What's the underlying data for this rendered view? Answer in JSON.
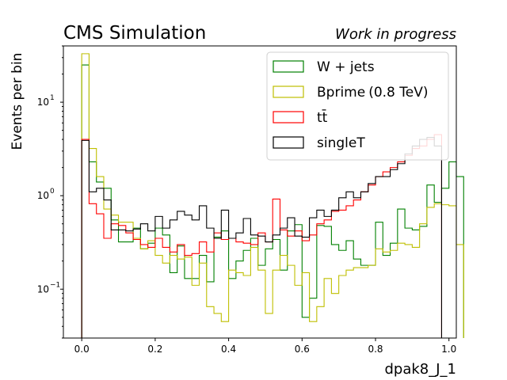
{
  "chart_data": {
    "type": "line",
    "subtype": "step-histogram",
    "title_left": "CMS Simulation",
    "title_right": "Work in progress",
    "xlabel": "dpak8_J_1",
    "ylabel": "Events per bin",
    "xlim": [
      -0.05,
      1.02
    ],
    "ylim": [
      0.03,
      40
    ],
    "yscale": "log",
    "xticks": [
      0.0,
      0.2,
      0.4,
      0.6,
      0.8,
      1.0
    ],
    "xtick_labels": [
      "0.0",
      "0.2",
      "0.4",
      "0.6",
      "0.8",
      "1.0"
    ],
    "yticks": [
      0.1,
      1,
      10
    ],
    "ytick_labels": [
      "10",
      "10",
      "10"
    ],
    "ytick_exponents": [
      "−1",
      "0",
      "1"
    ],
    "legend_position": "top-right",
    "bin_start": 0.0,
    "bin_width": 0.02,
    "series": [
      {
        "name": "W + jets",
        "label_main": "W + jets",
        "label_extra": "",
        "color": "#008000",
        "values": [
          25,
          2.3,
          1.4,
          1.2,
          0.55,
          0.32,
          0.32,
          0.45,
          0.27,
          0.31,
          0.45,
          0.38,
          0.15,
          0.29,
          0.13,
          0.13,
          0.23,
          0.12,
          0.36,
          0.42,
          0.13,
          0.2,
          0.26,
          0.35,
          0.18,
          0.27,
          0.34,
          0.16,
          0.42,
          0.49,
          0.05,
          0.08,
          0.48,
          0.47,
          0.3,
          0.26,
          0.33,
          0.21,
          0.18,
          0.18,
          0.52,
          0.23,
          0.31,
          0.72,
          0.45,
          0.43,
          0.47,
          1.3,
          0.85,
          1.2,
          2.3,
          1.6
        ]
      },
      {
        "name": "Bprime (0.8 TeV)",
        "label_main": "Bprime",
        "label_extra": "(0.8 TeV)",
        "color": "#bfbf00",
        "values": [
          33,
          3.2,
          1.6,
          0.72,
          0.62,
          0.52,
          0.52,
          0.35,
          0.27,
          0.33,
          0.23,
          0.19,
          0.23,
          0.21,
          0.22,
          0.11,
          0.19,
          0.065,
          0.055,
          0.045,
          0.16,
          0.15,
          0.14,
          0.28,
          0.16,
          0.055,
          0.16,
          0.23,
          0.18,
          0.11,
          0.15,
          0.045,
          0.065,
          0.13,
          0.09,
          0.14,
          0.16,
          0.17,
          0.17,
          0.18,
          0.27,
          0.25,
          0.26,
          0.31,
          0.3,
          0.28,
          0.5,
          0.75,
          0.82,
          0.8,
          0.78,
          0.3
        ]
      },
      {
        "name": "tt̄",
        "label_main": "tt̄",
        "label_extra": "",
        "color": "#ff0000",
        "values": [
          4.0,
          0.82,
          0.64,
          0.35,
          0.5,
          0.48,
          0.4,
          0.34,
          0.3,
          0.28,
          0.35,
          0.28,
          0.25,
          0.3,
          0.23,
          0.24,
          0.32,
          0.25,
          0.4,
          0.34,
          0.35,
          0.32,
          0.31,
          0.3,
          0.4,
          0.32,
          0.92,
          0.43,
          0.37,
          0.42,
          0.33,
          0.38,
          0.5,
          0.55,
          0.68,
          0.7,
          0.78,
          0.9,
          1.1,
          1.3,
          1.6,
          1.8,
          2.0,
          2.3,
          2.7,
          3.2,
          3.4,
          4.0,
          4.5,
          0.03
        ]
      },
      {
        "name": "singleT",
        "label_main": "singleT",
        "label_extra": "",
        "color": "#000000",
        "values": [
          3.9,
          1.1,
          1.2,
          0.9,
          0.43,
          0.43,
          0.42,
          0.44,
          0.5,
          0.42,
          0.6,
          0.45,
          0.55,
          0.68,
          0.62,
          0.55,
          0.78,
          0.45,
          0.35,
          0.7,
          0.35,
          0.4,
          0.57,
          0.38,
          0.37,
          0.32,
          0.38,
          0.45,
          0.58,
          0.37,
          0.36,
          0.58,
          0.7,
          0.6,
          0.7,
          0.95,
          1.1,
          0.95,
          1.1,
          1.35,
          1.6,
          1.6,
          1.9,
          2.2,
          2.8,
          3.4,
          4.0,
          4.2,
          3.4,
          0.03
        ]
      }
    ]
  }
}
